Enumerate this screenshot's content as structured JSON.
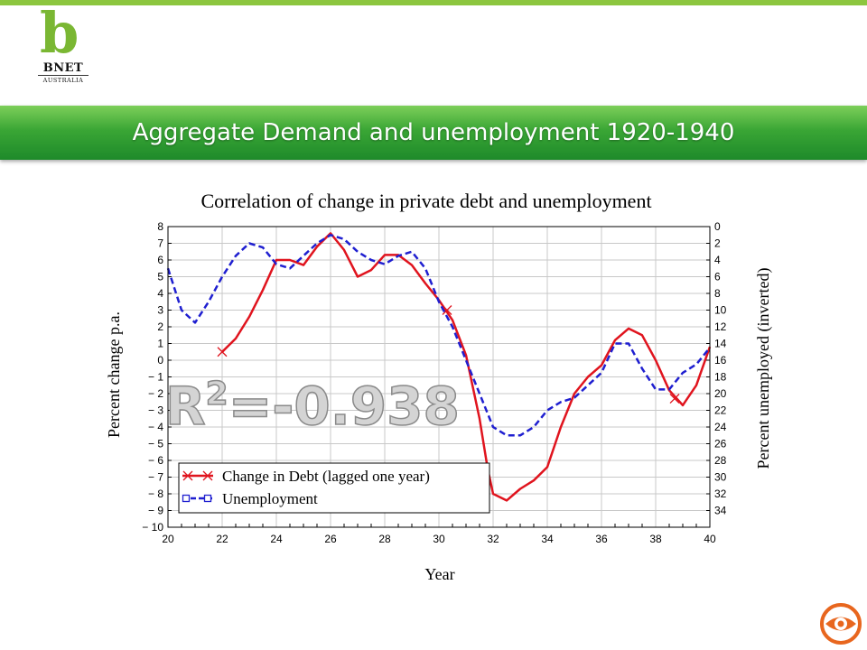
{
  "header": {
    "logo_letter": "b",
    "logo_name": "BNET",
    "logo_sub": "AUSTRALIA",
    "title": "Aggregate Demand and unemployment 1920-1940",
    "stripe_color": "#8cc63f",
    "banner_color": "#3aa635"
  },
  "chart_data": {
    "type": "line",
    "title": "Correlation of change in private debt and unemployment",
    "xlabel": "Year",
    "ylabel": "Percent change p.a.",
    "y2label": "Percent unemployed (inverted)",
    "xlim": [
      20,
      40
    ],
    "ylim": [
      -10,
      8
    ],
    "y2lim": [
      0,
      36
    ],
    "y2_inverted": true,
    "x_ticks": [
      "20",
      "22",
      "24",
      "26",
      "28",
      "30",
      "32",
      "34",
      "36",
      "38",
      "40"
    ],
    "y_ticks": [
      "8",
      "7",
      "6",
      "5",
      "4",
      "3",
      "2",
      "1",
      "0",
      "− 1",
      "− 2",
      "− 3",
      "− 4",
      "− 5",
      "− 6",
      "− 7",
      "− 8",
      "− 9",
      "− 10"
    ],
    "y2_ticks": [
      "0",
      "2",
      "4",
      "6",
      "8",
      "10",
      "12",
      "14",
      "16",
      "18",
      "20",
      "22",
      "24",
      "26",
      "28",
      "30",
      "32",
      "34"
    ],
    "grid": true,
    "legend_position": "bottom-left",
    "annotation": "R²=-0.938",
    "annotation_parts": {
      "r": "R",
      "sup": "2",
      "rest": "=-0.938"
    },
    "series": [
      {
        "name": "Change in Debt (lagged one year)",
        "axis": "left",
        "color": "#e0141e",
        "style": "solid",
        "marker": "x",
        "points": [
          [
            22,
            0.5
          ],
          [
            22.5,
            1.3
          ],
          [
            23,
            2.6
          ],
          [
            23.5,
            4.2
          ],
          [
            24,
            6.0
          ],
          [
            24.5,
            6.0
          ],
          [
            25,
            5.7
          ],
          [
            25.5,
            6.8
          ],
          [
            26,
            7.6
          ],
          [
            26.5,
            6.6
          ],
          [
            27,
            5.0
          ],
          [
            27.5,
            5.4
          ],
          [
            28,
            6.3
          ],
          [
            28.5,
            6.3
          ],
          [
            29,
            5.7
          ],
          [
            29.5,
            4.6
          ],
          [
            30,
            3.6
          ],
          [
            30.5,
            2.4
          ],
          [
            31,
            0.3
          ],
          [
            31.5,
            -3.5
          ],
          [
            31.8,
            -6.5
          ],
          [
            32,
            -8.0
          ],
          [
            32.5,
            -8.4
          ],
          [
            33,
            -7.7
          ],
          [
            33.5,
            -7.2
          ],
          [
            34,
            -6.4
          ],
          [
            34.5,
            -4.0
          ],
          [
            35,
            -2.0
          ],
          [
            35.5,
            -1.0
          ],
          [
            36,
            -0.3
          ],
          [
            36.5,
            1.2
          ],
          [
            37,
            1.9
          ],
          [
            37.5,
            1.5
          ],
          [
            38,
            0.0
          ],
          [
            38.5,
            -1.8
          ],
          [
            39,
            -2.7
          ],
          [
            39.5,
            -1.5
          ],
          [
            40,
            0.8
          ]
        ],
        "markers": [
          [
            22,
            0.5
          ],
          [
            30.3,
            3.0
          ],
          [
            38.7,
            -2.3
          ]
        ]
      },
      {
        "name": "Unemployment",
        "axis": "right",
        "color": "#1f1fd0",
        "style": "dashed",
        "marker": "square",
        "points": [
          [
            20,
            5.0
          ],
          [
            20.5,
            10.0
          ],
          [
            21,
            11.5
          ],
          [
            21.5,
            9.0
          ],
          [
            22,
            6.0
          ],
          [
            22.5,
            3.5
          ],
          [
            23,
            2.0
          ],
          [
            23.5,
            2.5
          ],
          [
            24,
            4.5
          ],
          [
            24.5,
            5.0
          ],
          [
            25,
            3.5
          ],
          [
            25.5,
            2.0
          ],
          [
            26,
            1.0
          ],
          [
            26.5,
            1.5
          ],
          [
            27,
            3.0
          ],
          [
            27.5,
            4.0
          ],
          [
            28,
            4.5
          ],
          [
            28.5,
            3.5
          ],
          [
            29,
            3.0
          ],
          [
            29.5,
            5.0
          ],
          [
            30,
            9.0
          ],
          [
            30.5,
            12.0
          ],
          [
            31,
            16.0
          ],
          [
            31.5,
            20.0
          ],
          [
            32,
            24.0
          ],
          [
            32.5,
            25.0
          ],
          [
            33,
            25.0
          ],
          [
            33.5,
            24.0
          ],
          [
            34,
            22.0
          ],
          [
            34.5,
            21.0
          ],
          [
            35,
            20.5
          ],
          [
            35.5,
            19.0
          ],
          [
            36,
            17.5
          ],
          [
            36.5,
            14.0
          ],
          [
            37,
            14.0
          ],
          [
            37.5,
            17.0
          ],
          [
            38,
            19.5
          ],
          [
            38.5,
            19.5
          ],
          [
            39,
            17.5
          ],
          [
            39.5,
            16.5
          ],
          [
            40,
            14.5
          ]
        ],
        "markers": []
      }
    ]
  }
}
